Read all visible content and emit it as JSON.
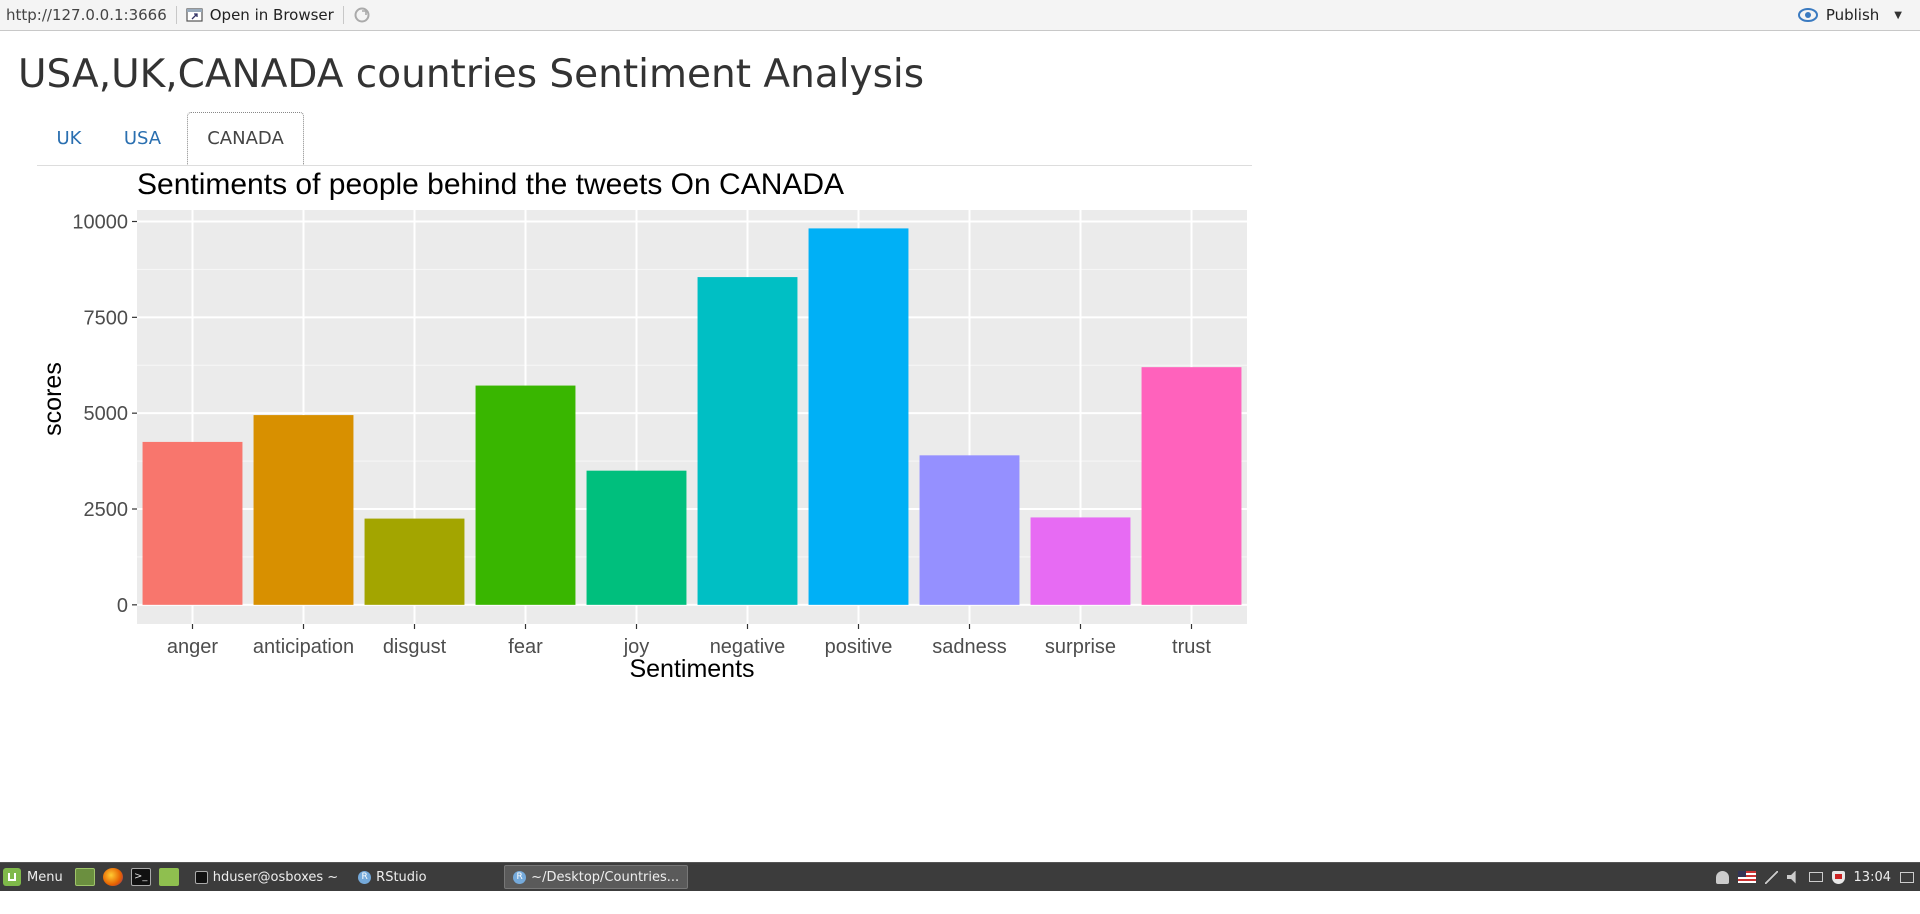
{
  "viewer": {
    "url": "http://127.0.0.1:3666",
    "open_in_browser": "Open in Browser",
    "publish": "Publish"
  },
  "page": {
    "title": "USA,UK,CANADA countries Sentiment Analysis",
    "tabs": [
      {
        "label": "UK",
        "active": false
      },
      {
        "label": "USA",
        "active": false
      },
      {
        "label": "CANADA",
        "active": true
      }
    ]
  },
  "chart_data": {
    "type": "bar",
    "title": "Sentiments of people behind the tweets On CANADA",
    "xlabel": "Sentiments",
    "ylabel": "scores",
    "categories": [
      "anger",
      "anticipation",
      "disgust",
      "fear",
      "joy",
      "negative",
      "positive",
      "sadness",
      "surprise",
      "trust"
    ],
    "values": [
      4250,
      4950,
      2250,
      5720,
      3500,
      8550,
      9820,
      3900,
      2280,
      6200
    ],
    "colors": [
      "#F8766D",
      "#D89000",
      "#A3A500",
      "#39B600",
      "#00BF7D",
      "#00BFC4",
      "#00B0F6",
      "#9590FF",
      "#E76BF3",
      "#FF62BC"
    ],
    "ylim": [
      -500,
      10300
    ],
    "yticks": [
      0,
      2500,
      5000,
      7500,
      10000
    ],
    "ytick_labels": [
      "0",
      "2500",
      "5000",
      "7500",
      "10000"
    ],
    "grid": true,
    "legend": "none"
  },
  "taskbar": {
    "menu_label": "Menu",
    "tasks": [
      {
        "label": "hduser@osboxes ~",
        "active": false
      },
      {
        "label": "RStudio",
        "active": false
      },
      {
        "label": "~/Desktop/Countries...",
        "active": true
      }
    ],
    "clock": "13:04"
  }
}
